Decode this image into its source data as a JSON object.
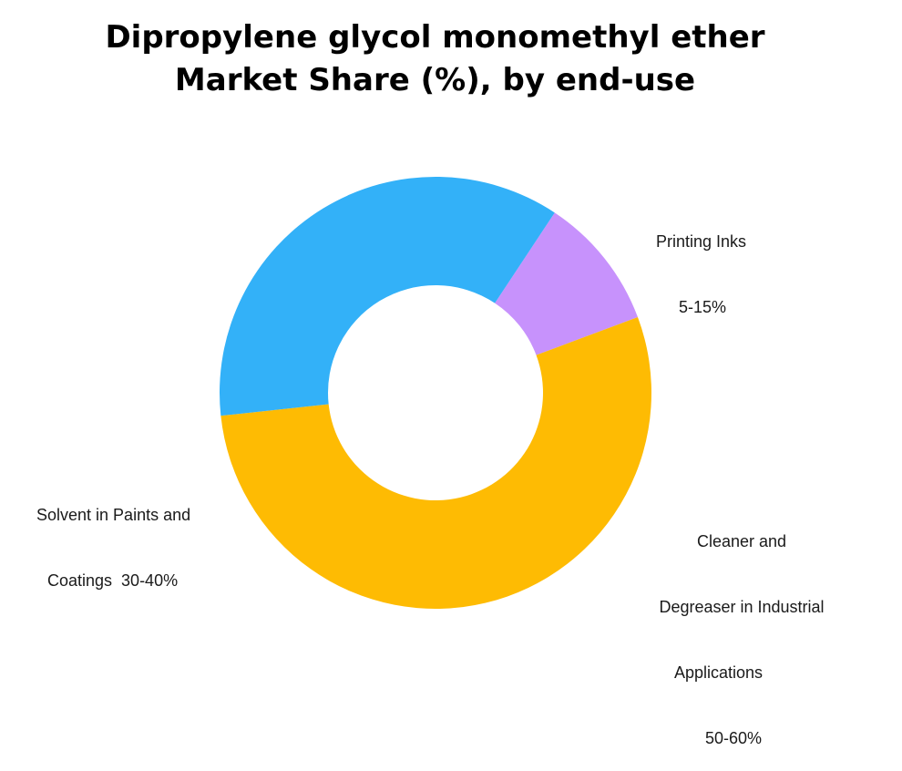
{
  "chart_data": {
    "type": "pie",
    "variant": "donut",
    "title": "Dipropylene glycol monomethyl ether Market Share (%), by end-use",
    "title_lines": [
      "Dipropylene glycol monomethyl ether",
      "Market Share (%), by end-use"
    ],
    "slices": [
      {
        "category": "Printing Inks",
        "range": "5-15%",
        "value": 10,
        "color": "#C792FC",
        "label_lines": [
          "Printing Inks",
          "5-15%"
        ]
      },
      {
        "category": "Cleaner and Degreaser in Industrial Applications",
        "range": "50-60%",
        "value": 54,
        "color": "#FEBB03",
        "label_lines": [
          "Cleaner and",
          "Degreaser in Industrial",
          "Applications",
          "50-60%"
        ]
      },
      {
        "category": "Solvent in Paints and Coatings",
        "range": "30-40%",
        "value": 36,
        "color": "#33B1F8",
        "label_lines": [
          "Solvent in Paints and",
          "Coatings  30-40%"
        ]
      }
    ],
    "start_angle_deg": 33.5,
    "direction": "clockwise",
    "legend": "none"
  }
}
